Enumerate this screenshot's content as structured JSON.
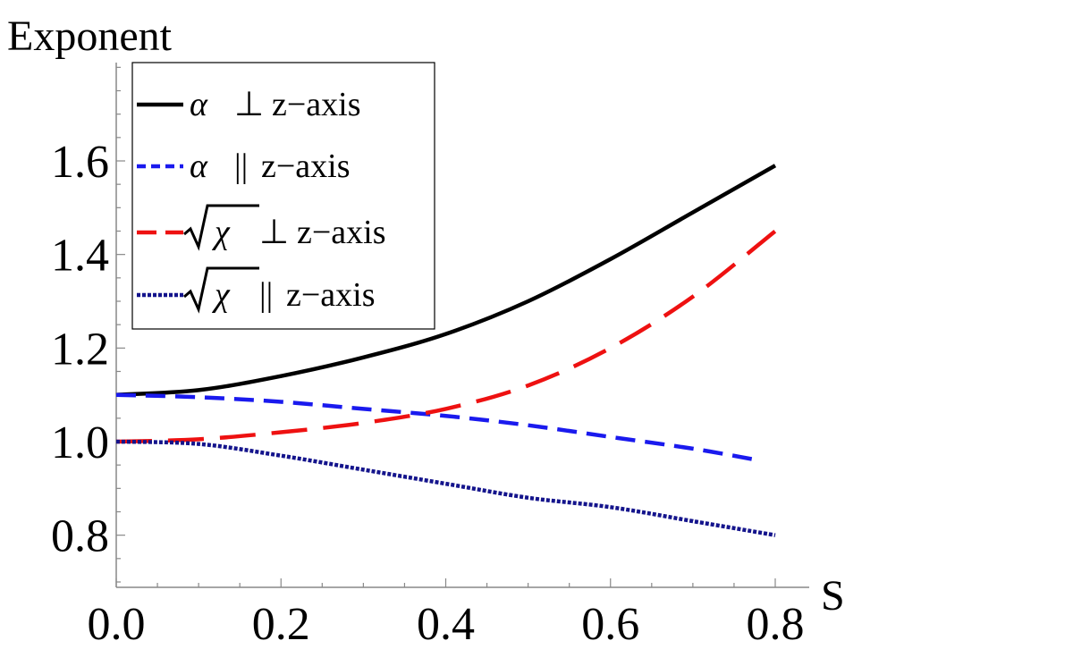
{
  "chart_data": {
    "type": "line",
    "ylabel": "Exponent",
    "xlabel": "S",
    "xlim": [
      0.0,
      0.8
    ],
    "ylim": [
      0.7,
      1.8
    ],
    "xticks": [
      "0.0",
      "0.2",
      "0.4",
      "0.6",
      "0.8"
    ],
    "xtick_values": [
      0.0,
      0.2,
      0.4,
      0.6,
      0.8
    ],
    "yticks": [
      "0.8",
      "1.0",
      "1.2",
      "1.4",
      "1.6"
    ],
    "ytick_values": [
      0.8,
      1.0,
      1.2,
      1.4,
      1.6
    ],
    "legend_position": "top-left",
    "series": [
      {
        "name": "α ⊥ z−axis",
        "symbol": "α",
        "relation": "⊥",
        "suffix": "z−axis",
        "color": "#000000",
        "style": "solid",
        "x": [
          0.0,
          0.1,
          0.2,
          0.3,
          0.4,
          0.5,
          0.6,
          0.7,
          0.8
        ],
        "y": [
          1.1,
          1.11,
          1.14,
          1.18,
          1.23,
          1.3,
          1.39,
          1.49,
          1.59
        ]
      },
      {
        "name": "α || z−axis",
        "symbol": "α",
        "relation": "||",
        "suffix": "z−axis",
        "color": "#1a1aee",
        "style": "dashed",
        "x": [
          0.0,
          0.1,
          0.2,
          0.3,
          0.4,
          0.5,
          0.6,
          0.7,
          0.78
        ],
        "y": [
          1.1,
          1.095,
          1.085,
          1.07,
          1.055,
          1.035,
          1.01,
          0.985,
          0.96
        ]
      },
      {
        "name": "√χ ⊥ z−axis",
        "symbol": "χ",
        "relation": "⊥",
        "suffix": "z−axis",
        "color": "#ee1111",
        "style": "longdash",
        "x": [
          0.0,
          0.1,
          0.2,
          0.3,
          0.4,
          0.5,
          0.6,
          0.7,
          0.8
        ],
        "y": [
          1.0,
          1.005,
          1.02,
          1.04,
          1.07,
          1.12,
          1.2,
          1.31,
          1.45
        ]
      },
      {
        "name": "√χ || z−axis",
        "symbol": "χ",
        "relation": "||",
        "suffix": "z−axis",
        "color": "#14148c",
        "style": "dotted",
        "x": [
          0.0,
          0.1,
          0.2,
          0.3,
          0.4,
          0.5,
          0.6,
          0.7,
          0.8
        ],
        "y": [
          1.0,
          0.995,
          0.97,
          0.94,
          0.91,
          0.88,
          0.86,
          0.83,
          0.8
        ]
      }
    ]
  }
}
